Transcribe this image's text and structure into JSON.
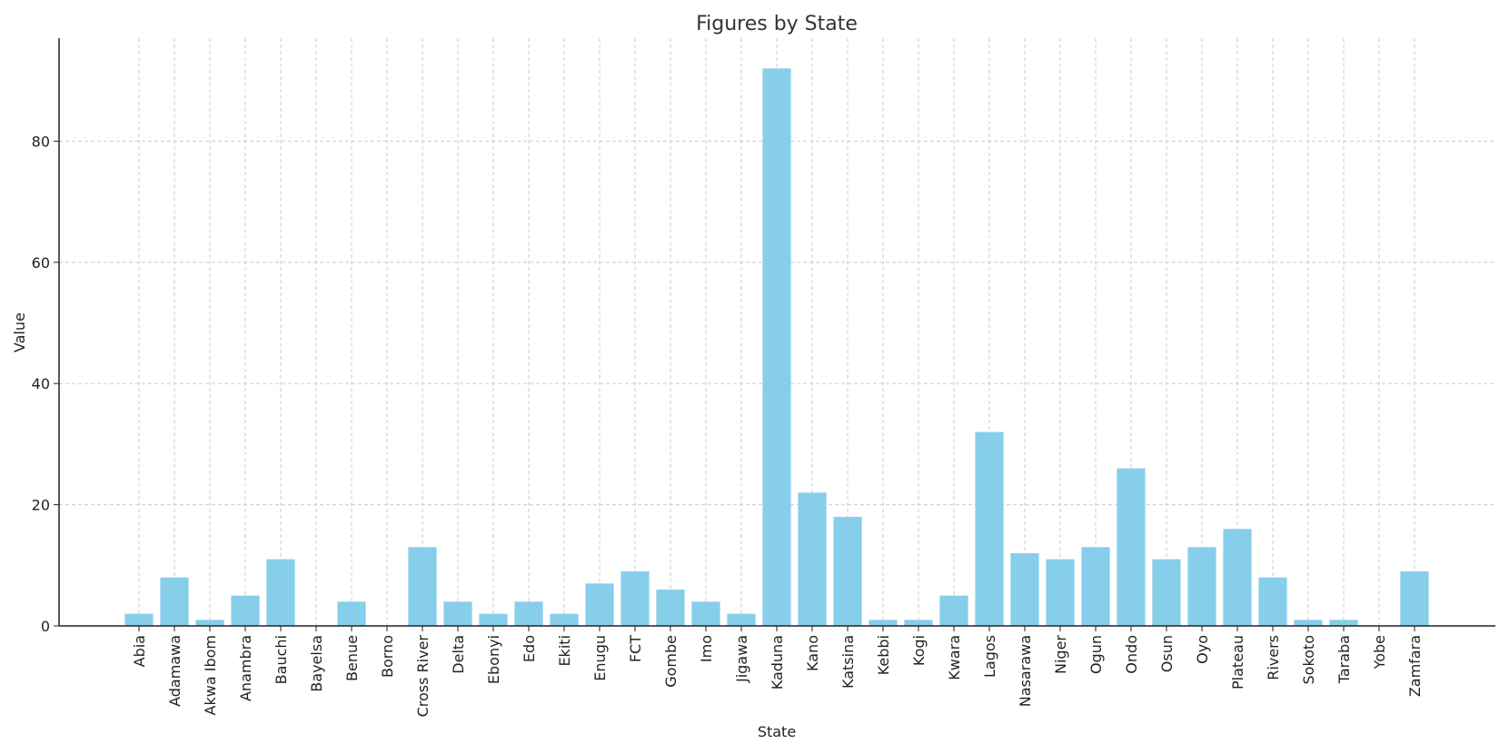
{
  "chart_data": {
    "type": "bar",
    "title": "Figures by State",
    "xlabel": "State",
    "ylabel": "Value",
    "ylim": [
      0,
      97
    ],
    "yticks": [
      0,
      20,
      40,
      60,
      80
    ],
    "grid": true,
    "bar_color": "#87ceeb",
    "categories": [
      "Abia",
      "Adamawa",
      "Akwa Ibom",
      "Anambra",
      "Bauchi",
      "Bayelsa",
      "Benue",
      "Borno",
      "Cross River",
      "Delta",
      "Ebonyi",
      "Edo",
      "Ekiti",
      "Enugu",
      "FCT",
      "Gombe",
      "Imo",
      "Jigawa",
      "Kaduna",
      "Kano",
      "Katsina",
      "Kebbi",
      "Kogi",
      "Kwara",
      "Lagos",
      "Nasarawa",
      "Niger",
      "Ogun",
      "Ondo",
      "Osun",
      "Oyo",
      "Plateau",
      "Rivers",
      "Sokoto",
      "Taraba",
      "Yobe",
      "Zamfara"
    ],
    "values": [
      2,
      8,
      1,
      5,
      11,
      0,
      4,
      0,
      13,
      4,
      2,
      4,
      2,
      7,
      9,
      6,
      4,
      2,
      92,
      22,
      18,
      1,
      1,
      5,
      32,
      12,
      11,
      13,
      26,
      11,
      13,
      16,
      8,
      1,
      1,
      0,
      9
    ]
  }
}
